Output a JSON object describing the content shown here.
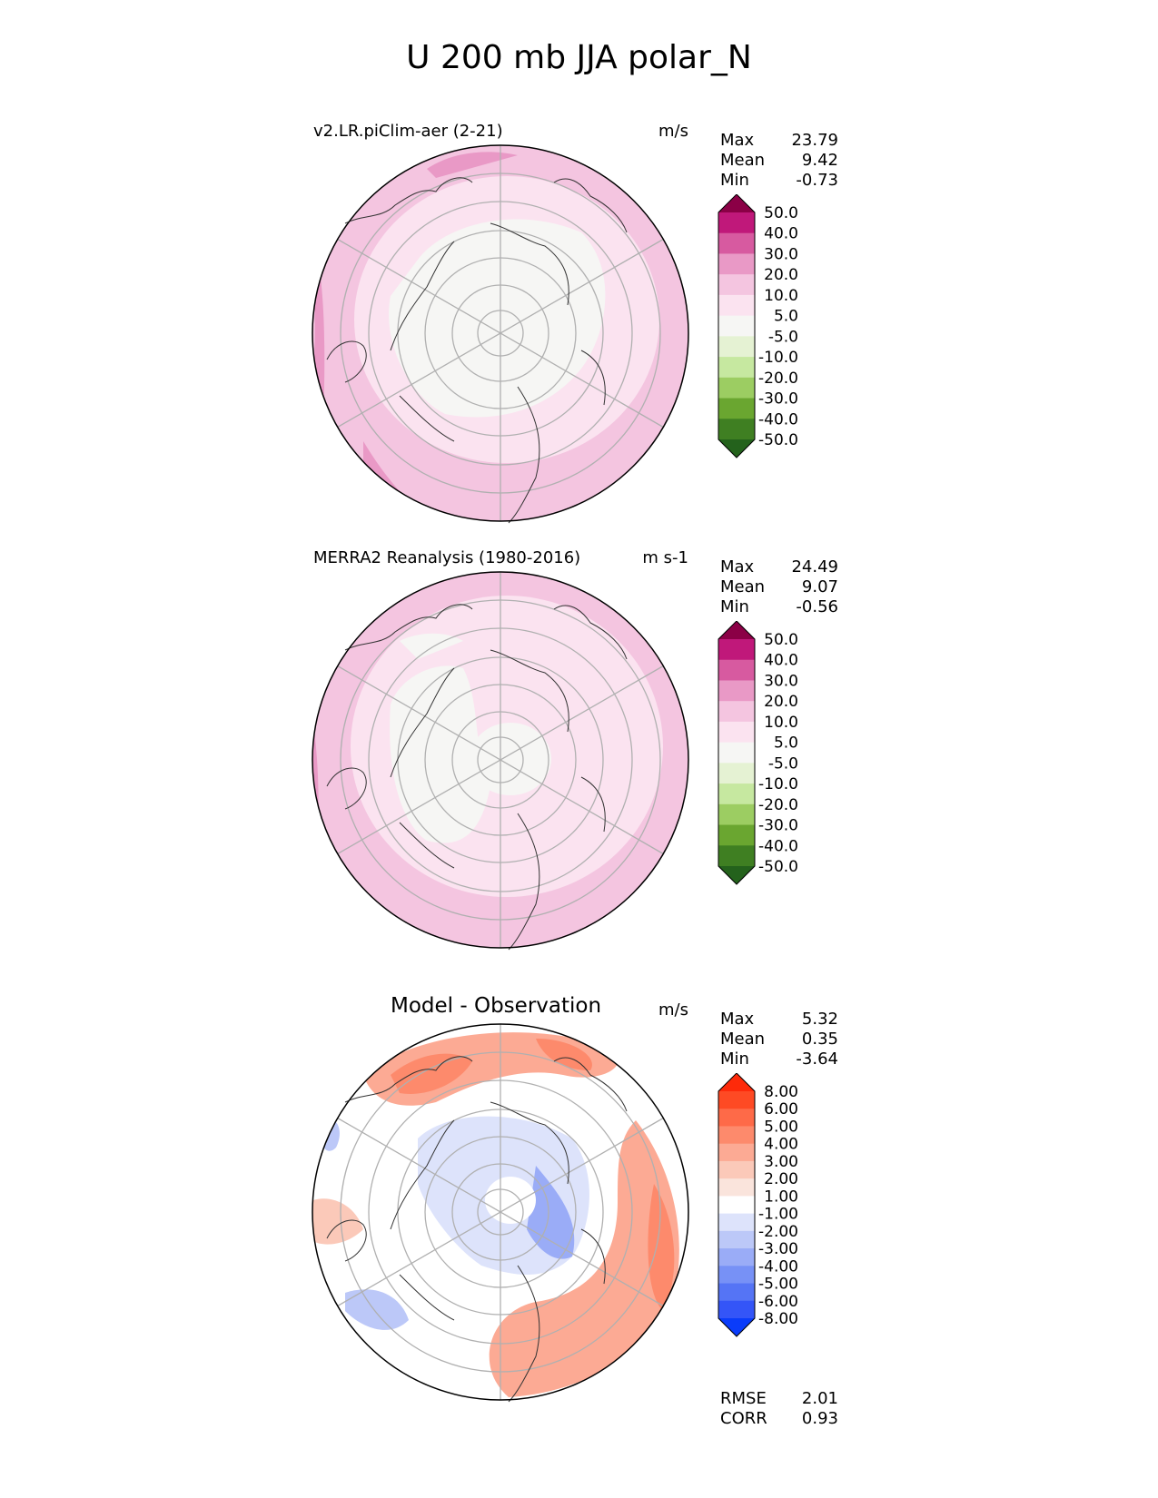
{
  "page": {
    "title": "U 200 mb JJA polar_N"
  },
  "panels": [
    {
      "title": "v2.LR.piClim-aer (2-21)",
      "units": "m/s",
      "stats": {
        "max_label": "Max",
        "max": "23.79",
        "mean_label": "Mean",
        "mean": "9.42",
        "min_label": "Min",
        "min": "-0.73"
      },
      "colorbar": {
        "labels": [
          "50.0",
          "40.0",
          "30.0",
          "20.0",
          "10.0",
          "5.0",
          "-5.0",
          "-10.0",
          "-20.0",
          "-30.0",
          "-40.0",
          "-50.0"
        ],
        "colors": [
          "#8b0046",
          "#c0187a",
          "#d75aa0",
          "#e999c6",
          "#f4c5e0",
          "#fbe3f0",
          "#f6f6f4",
          "#e5f2d3",
          "#c6e8a0",
          "#9ccd62",
          "#6aa630",
          "#3f7f22",
          "#24621c"
        ]
      }
    },
    {
      "title": "MERRA2 Reanalysis (1980-2016)",
      "units": "m s-1",
      "stats": {
        "max_label": "Max",
        "max": "24.49",
        "mean_label": "Mean",
        "mean": "9.07",
        "min_label": "Min",
        "min": "-0.56"
      },
      "colorbar": {
        "labels": [
          "50.0",
          "40.0",
          "30.0",
          "20.0",
          "10.0",
          "5.0",
          "-5.0",
          "-10.0",
          "-20.0",
          "-30.0",
          "-40.0",
          "-50.0"
        ],
        "colors": [
          "#8b0046",
          "#c0187a",
          "#d75aa0",
          "#e999c6",
          "#f4c5e0",
          "#fbe3f0",
          "#f6f6f4",
          "#e5f2d3",
          "#c6e8a0",
          "#9ccd62",
          "#6aa630",
          "#3f7f22",
          "#24621c"
        ]
      }
    },
    {
      "title": "Model - Observation",
      "units": "m/s",
      "stats": {
        "max_label": "Max",
        "max": "5.32",
        "mean_label": "Mean",
        "mean": "0.35",
        "min_label": "Min",
        "min": "-3.64"
      },
      "colorbar": {
        "labels": [
          "8.00",
          "6.00",
          "5.00",
          "4.00",
          "3.00",
          "2.00",
          "1.00",
          "-1.00",
          "-2.00",
          "-3.00",
          "-4.00",
          "-5.00",
          "-6.00",
          "-8.00"
        ],
        "colors": [
          "#fe2a0a",
          "#fe4a24",
          "#fe6a48",
          "#fd8a6c",
          "#fcaa94",
          "#fbc9b9",
          "#fae4dc",
          "#ffffff",
          "#dde3fb",
          "#bcc8f8",
          "#9aacf7",
          "#7791f6",
          "#5574f5",
          "#3455f7",
          "#0a3cfa"
        ]
      }
    }
  ],
  "bottom_stats": {
    "rmse_label": "RMSE",
    "rmse": "2.01",
    "corr_label": "CORR",
    "corr": "0.93"
  },
  "chart_data": [
    {
      "type": "heatmap",
      "title": "v2.LR.piClim-aer (2-21)",
      "units": "m/s",
      "projection": "north polar stereographic",
      "max": 23.79,
      "mean": 9.42,
      "min": -0.73,
      "contour_levels": [
        -50,
        -40,
        -30,
        -20,
        -10,
        -5,
        5,
        10,
        20,
        30,
        40,
        50
      ]
    },
    {
      "type": "heatmap",
      "title": "MERRA2 Reanalysis (1980-2016)",
      "units": "m s-1",
      "projection": "north polar stereographic",
      "max": 24.49,
      "mean": 9.07,
      "min": -0.56,
      "contour_levels": [
        -50,
        -40,
        -30,
        -20,
        -10,
        -5,
        5,
        10,
        20,
        30,
        40,
        50
      ]
    },
    {
      "type": "heatmap",
      "title": "Model - Observation",
      "units": "m/s",
      "projection": "north polar stereographic",
      "max": 5.32,
      "mean": 0.35,
      "min": -3.64,
      "rmse": 2.01,
      "corr": 0.93,
      "contour_levels": [
        -8,
        -6,
        -5,
        -4,
        -3,
        -2,
        -1,
        1,
        2,
        3,
        4,
        5,
        6,
        8
      ]
    }
  ]
}
